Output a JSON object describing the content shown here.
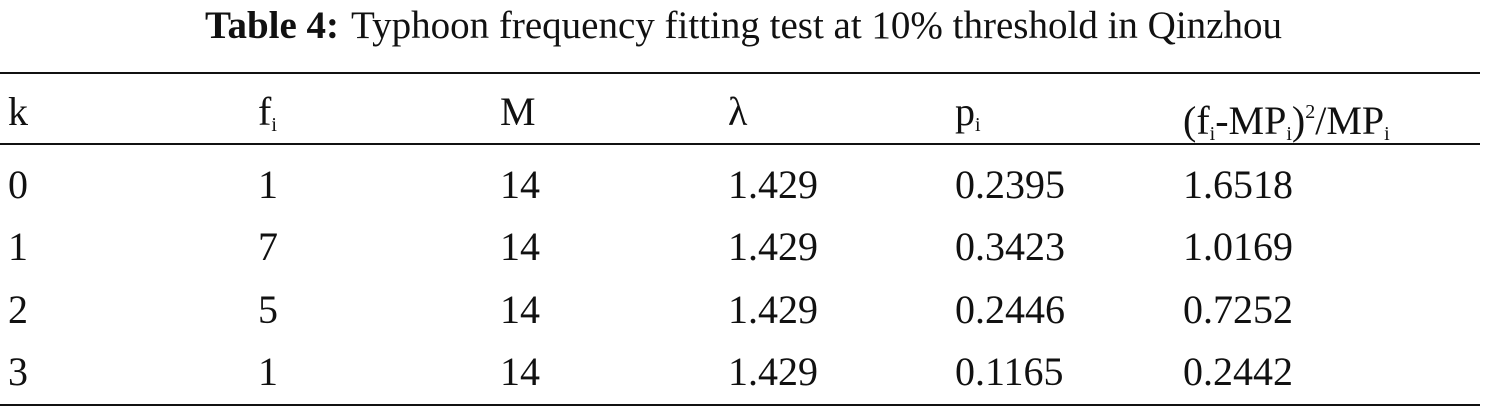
{
  "title": {
    "label": "Table 4:",
    "text": "Typhoon frequency fitting test at 10% threshold in Qinzhou"
  },
  "table": {
    "header": [
      [
        "k"
      ],
      [
        "f",
        "i"
      ],
      [
        "M"
      ],
      [
        "λ"
      ],
      [
        "p",
        "i"
      ],
      [
        "(f",
        "i",
        "-MP",
        "i",
        ")",
        "2",
        "/MP",
        "i"
      ]
    ],
    "rows": [
      [
        "0",
        "1",
        "14",
        "1.429",
        "0.2395",
        "1.6518"
      ],
      [
        "1",
        "7",
        "14",
        "1.429",
        "0.3423",
        "1.0169"
      ],
      [
        "2",
        "5",
        "14",
        "1.429",
        "0.2446",
        "0.7252"
      ],
      [
        "3",
        "1",
        "14",
        "1.429",
        "0.1165",
        "0.2442"
      ]
    ]
  }
}
